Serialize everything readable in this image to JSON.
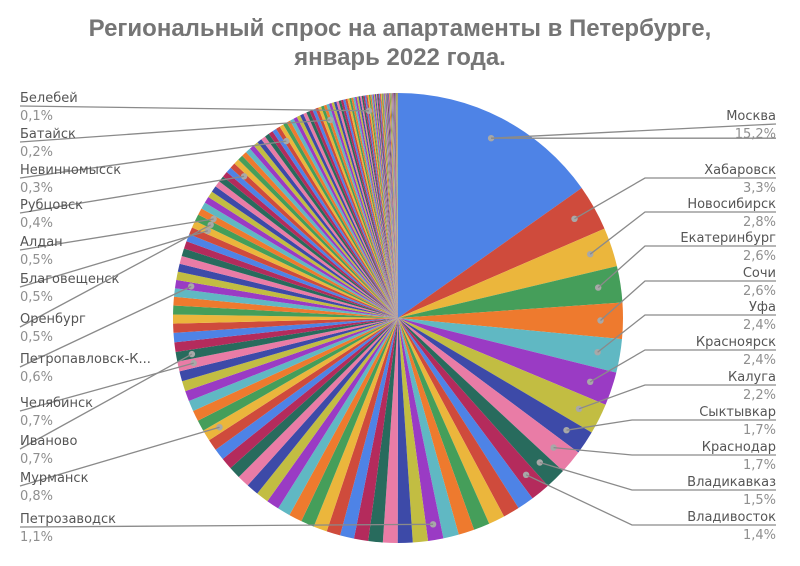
{
  "title": {
    "line1": "Региональный спрос на апартаменты в Петербурге,",
    "line2": "январь 2022 года."
  },
  "chart_data": {
    "type": "pie",
    "title": "Региональный спрос на апартаменты в Петербурге, январь 2022 года.",
    "unit": "%",
    "labeled_slices": [
      {
        "label": "Москва",
        "value": 15.2,
        "value_text": "15,2%",
        "color": "#4e83e6"
      },
      {
        "label": "Хабаровск",
        "value": 3.3,
        "value_text": "3,3%",
        "color": "#cf4b3c"
      },
      {
        "label": "Новосибирск",
        "value": 2.8,
        "value_text": "2,8%",
        "color": "#ebb63c"
      },
      {
        "label": "Екатеринбург",
        "value": 2.6,
        "value_text": "2,6%",
        "color": "#459e5a"
      },
      {
        "label": "Сочи",
        "value": 2.6,
        "value_text": "2,6%",
        "color": "#ee7a2e"
      },
      {
        "label": "Уфа",
        "value": 2.4,
        "value_text": "2,4%",
        "color": "#60b8c3"
      },
      {
        "label": "Красноярск",
        "value": 2.4,
        "value_text": "2,4%",
        "color": "#9a3bc4"
      },
      {
        "label": "Калуга",
        "value": 2.2,
        "value_text": "2,2%",
        "color": "#c2bd42"
      },
      {
        "label": "Сыктывкар",
        "value": 1.7,
        "value_text": "1,7%",
        "color": "#3d4aa8"
      },
      {
        "label": "Краснодар",
        "value": 1.7,
        "value_text": "1,7%",
        "color": "#e97ca6"
      },
      {
        "label": "Владикавказ",
        "value": 1.5,
        "value_text": "1,5%",
        "color": "#286b5d"
      },
      {
        "label": "Владивосток",
        "value": 1.4,
        "value_text": "1,4%",
        "color": "#b42b5c"
      },
      {
        "label": "Петрозаводск",
        "value": 1.1,
        "value_text": "1,1%"
      },
      {
        "label": "Мурманск",
        "value": 0.8,
        "value_text": "0,8%"
      },
      {
        "label": "Иваново",
        "value": 0.7,
        "value_text": "0,7%"
      },
      {
        "label": "Челябинск",
        "value": 0.7,
        "value_text": "0,7%"
      },
      {
        "label": "Петропавловск-К...",
        "value": 0.6,
        "value_text": "0,6%"
      },
      {
        "label": "Оренбург",
        "value": 0.5,
        "value_text": "0,5%"
      },
      {
        "label": "Благовещенск",
        "value": 0.5,
        "value_text": "0,5%"
      },
      {
        "label": "Алдан",
        "value": 0.5,
        "value_text": "0,5%"
      },
      {
        "label": "Рубцовск",
        "value": 0.4,
        "value_text": "0,4%"
      },
      {
        "label": "Невинномысск",
        "value": 0.3,
        "value_text": "0,3%"
      },
      {
        "label": "Батайск",
        "value": 0.2,
        "value_text": "0,2%"
      },
      {
        "label": "Белебей",
        "value": 0.1,
        "value_text": "0,1%"
      }
    ],
    "other_unlabeled_slices_note": "Many additional small slices (≈0.1–1.1%) rendered without labels",
    "palette": [
      "#4e83e6",
      "#cf4b3c",
      "#ebb63c",
      "#459e5a",
      "#ee7a2e",
      "#60b8c3",
      "#9a3bc4",
      "#c2bd42",
      "#3d4aa8",
      "#e97ca6",
      "#286b5d",
      "#b42b5c"
    ],
    "legend_position": "labeled (callout lines)",
    "start_angle_deg": 0,
    "direction": "clockwise"
  }
}
